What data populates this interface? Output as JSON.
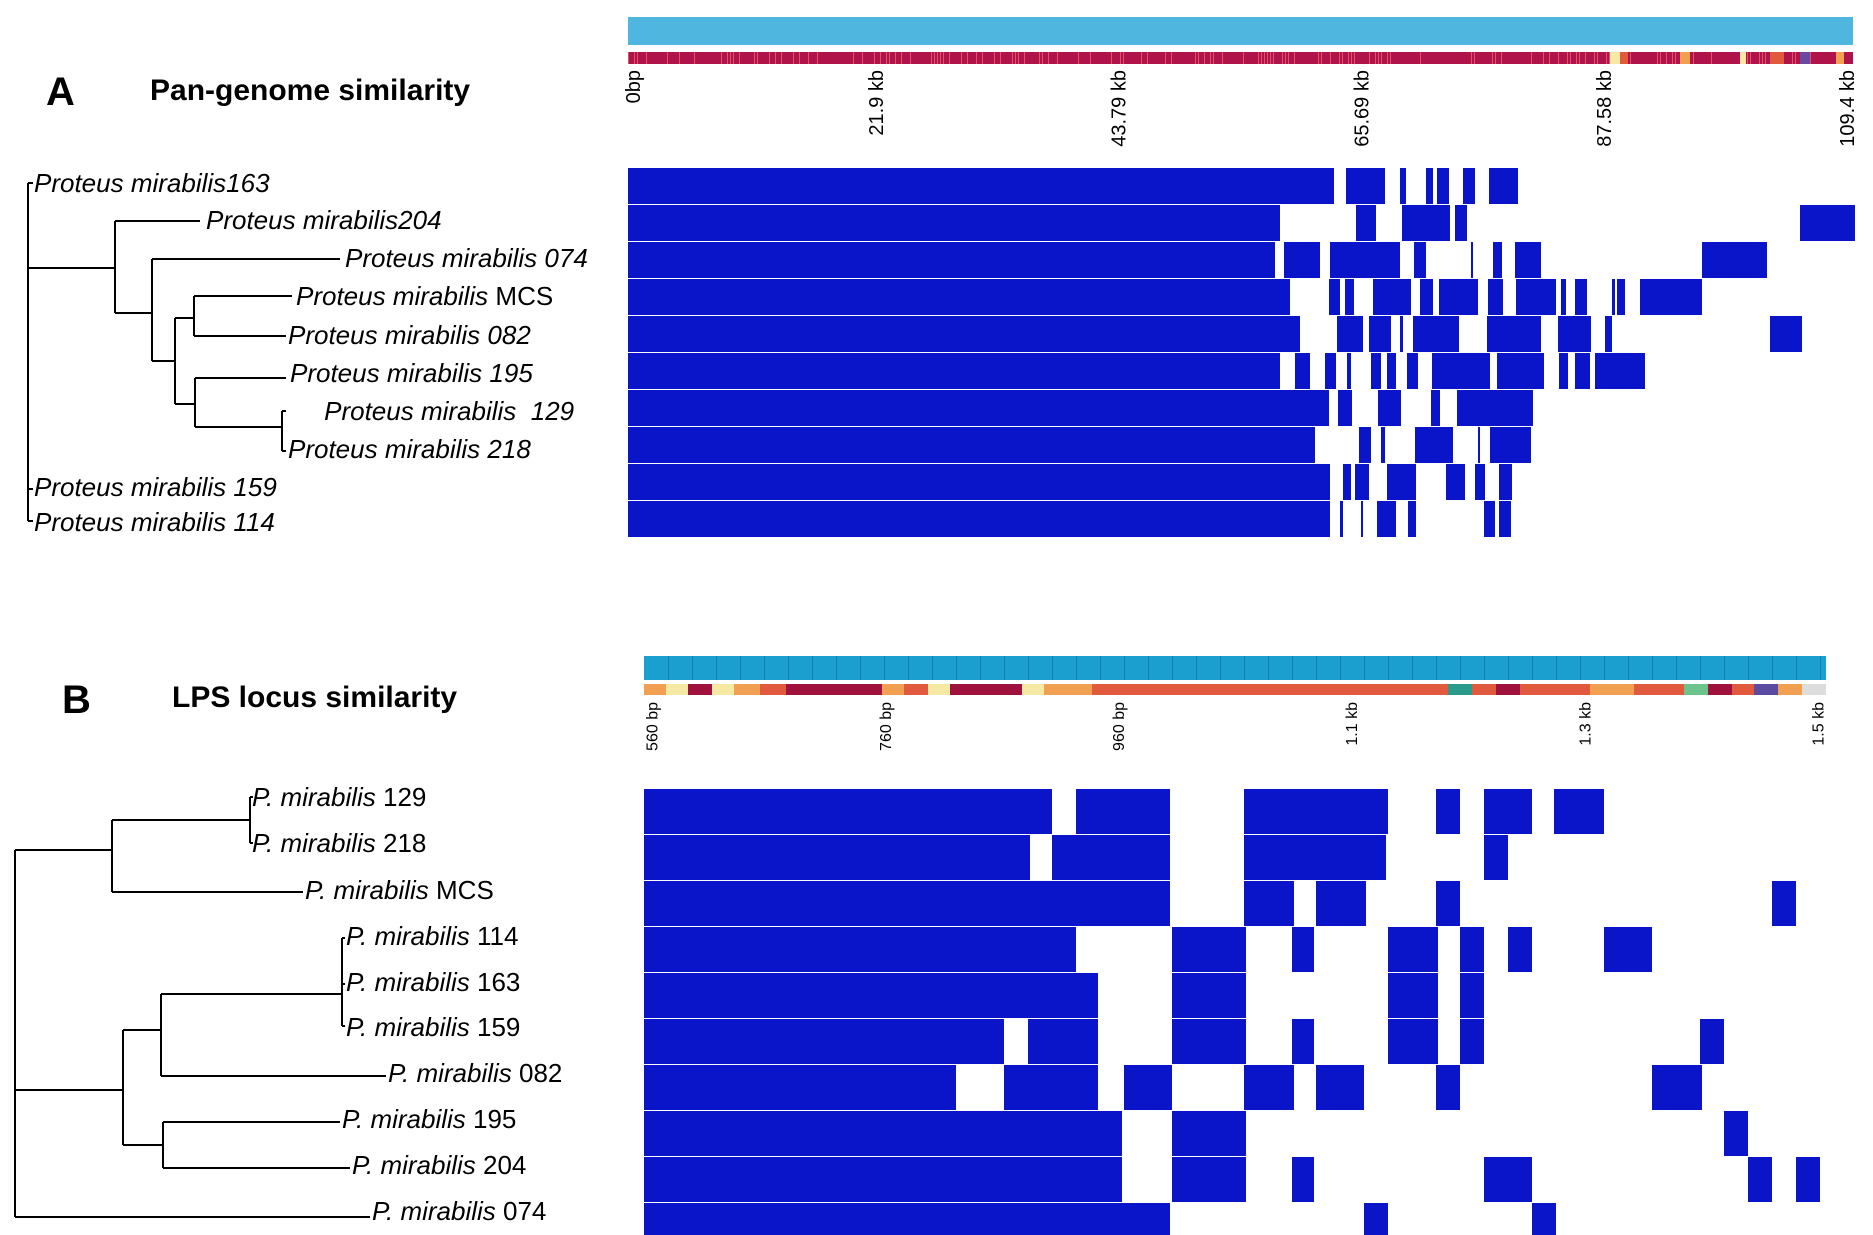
{
  "colors": {
    "matrix": "#0a14c9",
    "top_bar_a": "#4fb6df",
    "top_bar_b": "#1a9fcf",
    "annot_a": "#b0124a",
    "annot_b": "#d7473d",
    "tree": "#000000"
  },
  "panel_a": {
    "letter": "A",
    "title": "Pan-genome similarity",
    "axis_ticks": [
      "0bp",
      "21.9 kb",
      "43.79 kb",
      "65.69 kb",
      "87.58 kb",
      "109.4 kb"
    ],
    "taxa": [
      {
        "genus": "Proteus mirabilis",
        "id": "163",
        "sep": ""
      },
      {
        "genus": "Proteus mirabilis",
        "id": "204",
        "sep": ""
      },
      {
        "genus": "Proteus mirabilis",
        "id": "074",
        "sep": " "
      },
      {
        "genus": "Proteus mirabilis",
        "id": "MCS",
        "sep": " "
      },
      {
        "genus": "Proteus mirabilis",
        "id": "082",
        "sep": " "
      },
      {
        "genus": "Proteus mirabilis",
        "id": "195",
        "sep": " "
      },
      {
        "genus": "Proteus mirabilis",
        "id": "129",
        "sep": "  "
      },
      {
        "genus": "Proteus mirabilis",
        "id": "218",
        "sep": " "
      },
      {
        "genus": "Proteus mirabilis",
        "id": "159",
        "sep": " "
      },
      {
        "genus": "Proteus mirabilis",
        "id": "114",
        "sep": " "
      }
    ]
  },
  "panel_b": {
    "letter": "B",
    "title": "LPS locus similarity",
    "axis_ticks": [
      "560 bp",
      "760 bp",
      "960 bp",
      "1.1 kb",
      "1.3 kb",
      "1.5 kb"
    ],
    "taxa": [
      {
        "genus": "P. mirabilis",
        "id": "129"
      },
      {
        "genus": "P. mirabilis",
        "id": "218"
      },
      {
        "genus": "P. mirabilis",
        "id": "MCS"
      },
      {
        "genus": "P. mirabilis",
        "id": "114"
      },
      {
        "genus": "P. mirabilis",
        "id": "163"
      },
      {
        "genus": "P. mirabilis",
        "id": "159"
      },
      {
        "genus": "P. mirabilis",
        "id": "082"
      },
      {
        "genus": "P. mirabilis",
        "id": "195"
      },
      {
        "genus": "P. mirabilis",
        "id": "204"
      },
      {
        "genus": "P. mirabilis",
        "id": "074"
      }
    ]
  }
}
